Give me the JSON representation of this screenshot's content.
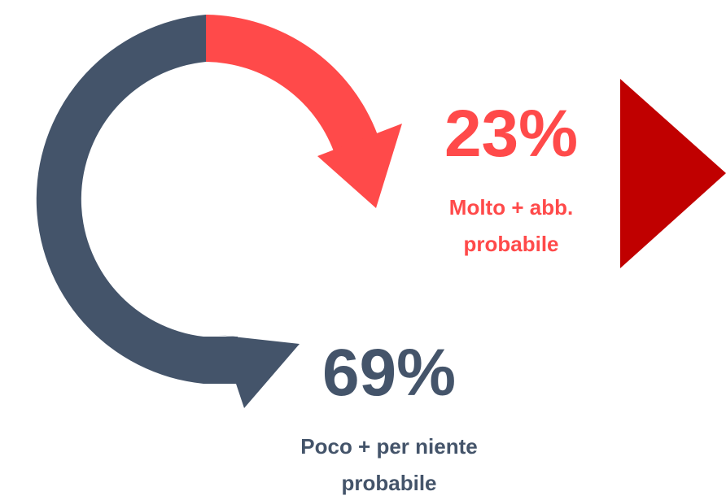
{
  "items": [
    {
      "value": "23%",
      "label": "Molto + abb. probabile"
    },
    {
      "value": "69%",
      "label": "Poco + per niente probabile"
    }
  ]
}
